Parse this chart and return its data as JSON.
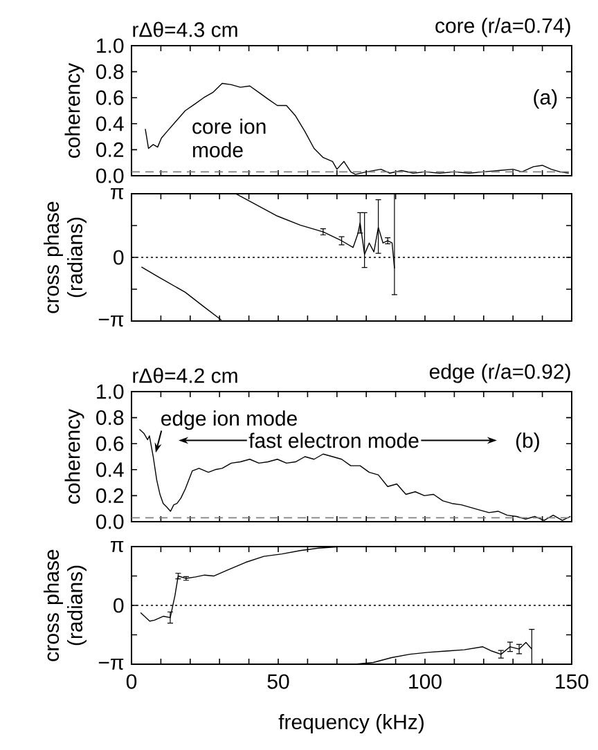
{
  "chart_data": [
    {
      "type": "line",
      "title": "rΔθ=4.3 cm",
      "subtitle": "core (r/a=0.74)",
      "ylabel": "coherency",
      "tick_labels": "y",
      "xlim": [
        0,
        150
      ],
      "xticks": [
        0,
        {
          "value": 10,
          "label": null
        },
        {
          "value": 20,
          "label": null
        },
        {
          "value": 30,
          "label": null
        },
        {
          "value": 40,
          "label": null
        },
        50,
        {
          "value": 60,
          "label": null
        },
        {
          "value": 70,
          "label": null
        },
        {
          "value": 80,
          "label": null
        },
        {
          "value": 90,
          "label": null
        },
        100,
        {
          "value": 110,
          "label": null
        },
        {
          "value": 120,
          "label": null
        },
        {
          "value": 130,
          "label": null
        },
        {
          "value": 140,
          "label": null
        },
        150
      ],
      "ylim": [
        0,
        1
      ],
      "yticks": [
        {
          "value": 0,
          "label": "0.0"
        },
        {
          "value": 0.2,
          "label": "0.2"
        },
        {
          "value": 0.4,
          "label": "0.4"
        },
        {
          "value": 0.6,
          "label": "0.6"
        },
        {
          "value": 0.8,
          "label": "0.8"
        },
        {
          "value": 1,
          "label": "1.0"
        }
      ],
      "annotations": [
        "(a)",
        "core ion mode"
      ],
      "ref_lines": [
        {
          "axis": "y",
          "value": 0.03,
          "color": "#808080",
          "line_style": "dashed"
        }
      ],
      "series": [
        {
          "color": "#000000",
          "line_style": "solid",
          "x": [
            4.7,
            5.8,
            7.4,
            8.9,
            10.2,
            12.1,
            15.2,
            18.3,
            21.5,
            24.6,
            27.7,
            30.9,
            34.0,
            37.1,
            40.3,
            43.4,
            46.5,
            49.7,
            52.8,
            55.9,
            59.1,
            62.2,
            65.3,
            68.5,
            70.0,
            72.4,
            74.7,
            76.3,
            80,
            85,
            88,
            92,
            96,
            100,
            105,
            110,
            115,
            120,
            125,
            130,
            133,
            137,
            140,
            143,
            146,
            149
          ],
          "values": [
            0.36,
            0.21,
            0.24,
            0.22,
            0.29,
            0.34,
            0.42,
            0.5,
            0.55,
            0.6,
            0.64,
            0.71,
            0.7,
            0.68,
            0.69,
            0.64,
            0.59,
            0.54,
            0.54,
            0.46,
            0.34,
            0.21,
            0.14,
            0.11,
            0.05,
            0.11,
            0.03,
            0.01,
            0.03,
            0.05,
            0.02,
            0.04,
            0.02,
            0.03,
            0.02,
            0.03,
            0.02,
            0.03,
            0.04,
            0.05,
            0.03,
            0.07,
            0.08,
            0.05,
            0.03,
            0.02
          ]
        }
      ]
    },
    {
      "type": "line",
      "ylabel": "cross phase (radians)",
      "tick_labels": "y",
      "xlim": [
        0,
        150
      ],
      "xticks": [
        0,
        {
          "value": 10,
          "label": null
        },
        {
          "value": 20,
          "label": null
        },
        {
          "value": 30,
          "label": null
        },
        {
          "value": 40,
          "label": null
        },
        50,
        {
          "value": 60,
          "label": null
        },
        {
          "value": 70,
          "label": null
        },
        {
          "value": 80,
          "label": null
        },
        {
          "value": 90,
          "label": null
        },
        100,
        {
          "value": 110,
          "label": null
        },
        {
          "value": 120,
          "label": null
        },
        {
          "value": 130,
          "label": null
        },
        {
          "value": 140,
          "label": null
        },
        150
      ],
      "ylim": [
        -3.1416,
        3.1416
      ],
      "yticks": [
        {
          "value": -3.1416,
          "label": "−π"
        },
        {
          "value": -1.5708,
          "label": null
        },
        0,
        {
          "value": 1.5708,
          "label": null
        },
        {
          "value": 3.1416,
          "label": "π"
        }
      ],
      "ref_lines": [
        {
          "axis": "y",
          "value": 0,
          "color": "#000000",
          "line_style": "dotted"
        }
      ],
      "series": [
        {
          "color": "#000000",
          "line_style": "solid",
          "x": [
            3.4,
            8.9,
            18.3,
            24.6,
            30.6,
            33,
            35.6,
            49.7,
            57.5,
            65.3,
            71.6,
            75.5,
            77.1,
            77.9,
            79.4,
            81.0,
            82.6,
            84.1,
            85.7,
            87.3,
            88.8,
            89.6
          ],
          "values": [
            -0.47,
            -0.94,
            -1.72,
            -2.43,
            -3.09,
            null,
            3.14,
            2.04,
            1.59,
            1.26,
            0.82,
            0.49,
            1.15,
            1.7,
            0.15,
            0.71,
            0.27,
            1.48,
            0.71,
            0.82,
            0.71,
            -0.54
          ],
          "errors": [
            null,
            null,
            null,
            null,
            null,
            null,
            null,
            null,
            null,
            0.15,
            0.2,
            null,
            null,
            [
              1.2,
              2.21
            ],
            [
              -0.5,
              2.21
            ],
            null,
            null,
            [
              0.2,
              2.85
            ],
            null,
            0.15,
            null,
            [
              -1.84,
              3.14
            ]
          ]
        }
      ]
    },
    {
      "type": "line",
      "title": "rΔθ=4.2 cm",
      "subtitle": "edge (r/a=0.92)",
      "ylabel": "coherency",
      "tick_labels": "y",
      "xlim": [
        0,
        150
      ],
      "xticks": [
        0,
        {
          "value": 10,
          "label": null
        },
        {
          "value": 20,
          "label": null
        },
        {
          "value": 30,
          "label": null
        },
        {
          "value": 40,
          "label": null
        },
        50,
        {
          "value": 60,
          "label": null
        },
        {
          "value": 70,
          "label": null
        },
        {
          "value": 80,
          "label": null
        },
        {
          "value": 90,
          "label": null
        },
        100,
        {
          "value": 110,
          "label": null
        },
        {
          "value": 120,
          "label": null
        },
        {
          "value": 130,
          "label": null
        },
        {
          "value": 140,
          "label": null
        },
        150
      ],
      "ylim": [
        0,
        1
      ],
      "yticks": [
        {
          "value": 0,
          "label": "0.0"
        },
        {
          "value": 0.2,
          "label": "0.2"
        },
        {
          "value": 0.4,
          "label": "0.4"
        },
        {
          "value": 0.6,
          "label": "0.6"
        },
        {
          "value": 0.8,
          "label": "0.8"
        },
        {
          "value": 1,
          "label": "1.0"
        }
      ],
      "annotations": [
        "(b)",
        "edge ion mode",
        "fast electron mode"
      ],
      "ref_lines": [
        {
          "axis": "y",
          "value": 0.03,
          "color": "#808080",
          "line_style": "dashed"
        }
      ],
      "series": [
        {
          "color": "#000000",
          "line_style": "solid",
          "x": [
            2.7,
            4.2,
            5.5,
            6.1,
            7.4,
            8.6,
            9.7,
            10.8,
            12.1,
            13.3,
            14.4,
            15.5,
            16.8,
            18.3,
            20.7,
            23.0,
            26.2,
            28.5,
            30.9,
            34.0,
            37.1,
            40.3,
            43.4,
            46.5,
            49.7,
            52.8,
            55.9,
            59.1,
            62.2,
            65.3,
            68.5,
            71.6,
            74.7,
            77.9,
            81.0,
            84.1,
            87.3,
            90.4,
            93.5,
            96.7,
            99.8,
            102.9,
            106.1,
            109.2,
            112.4,
            115.5,
            118.6,
            121.8,
            124.9,
            128.0,
            131.2,
            134.3,
            137.4,
            140.6,
            143.7,
            146.8,
            149.6
          ],
          "values": [
            0.71,
            0.68,
            0.63,
            0.66,
            0.5,
            0.32,
            0.21,
            0.14,
            0.11,
            0.08,
            0.13,
            0.14,
            0.18,
            0.25,
            0.39,
            0.41,
            0.38,
            0.4,
            0.41,
            0.45,
            0.46,
            0.48,
            0.45,
            0.46,
            0.48,
            0.45,
            0.46,
            0.5,
            0.48,
            0.52,
            0.5,
            0.48,
            0.43,
            0.43,
            0.38,
            0.36,
            0.27,
            0.29,
            0.21,
            0.23,
            0.2,
            0.21,
            0.16,
            0.14,
            0.13,
            0.11,
            0.09,
            0.07,
            0.08,
            0.05,
            0.04,
            0.02,
            0.04,
            0.01,
            0.05,
            0.01,
            0.04
          ]
        }
      ]
    },
    {
      "type": "line",
      "xlabel": "frequency (kHz)",
      "ylabel": "cross phase (radians)",
      "xlim": [
        0,
        150
      ],
      "xticks": [
        0,
        {
          "value": 10,
          "label": null
        },
        {
          "value": 20,
          "label": null
        },
        {
          "value": 30,
          "label": null
        },
        {
          "value": 40,
          "label": null
        },
        50,
        {
          "value": 60,
          "label": null
        },
        {
          "value": 70,
          "label": null
        },
        {
          "value": 80,
          "label": null
        },
        {
          "value": 90,
          "label": null
        },
        100,
        {
          "value": 110,
          "label": null
        },
        {
          "value": 120,
          "label": null
        },
        {
          "value": 130,
          "label": null
        },
        {
          "value": 140,
          "label": null
        },
        150
      ],
      "ylim": [
        -3.1416,
        3.1416
      ],
      "yticks": [
        {
          "value": -3.1416,
          "label": "−π"
        },
        {
          "value": -1.5708,
          "label": null
        },
        0,
        {
          "value": 1.5708,
          "label": null
        },
        {
          "value": 3.1416,
          "label": "π"
        }
      ],
      "ref_lines": [
        {
          "axis": "y",
          "value": 0,
          "color": "#000000",
          "line_style": "dotted"
        }
      ],
      "series": [
        {
          "color": "#000000",
          "line_style": "solid",
          "x": [
            3.1,
            6.2,
            7.8,
            10.9,
            13.2,
            14.8,
            15.9,
            18.6,
            21.8,
            24.9,
            28.0,
            32.6,
            38.9,
            45.1,
            51.3,
            57.5,
            63.7,
            71.5,
            74,
            76.1,
            82.4,
            88.6,
            94.8,
            101.0,
            107.2,
            113.4,
            119.7,
            122.8,
            125.9,
            129.0,
            132.1,
            134.4,
            136.4
          ],
          "values": [
            -0.39,
            -0.84,
            -0.79,
            -0.58,
            -0.65,
            0.52,
            1.57,
            1.44,
            1.52,
            1.62,
            1.57,
            1.88,
            2.3,
            2.62,
            2.75,
            2.93,
            3.06,
            3.14,
            null,
            -3.14,
            -3.05,
            -2.79,
            -2.61,
            -2.51,
            -2.44,
            -2.37,
            -2.21,
            -2.44,
            -2.61,
            -2.21,
            -2.33,
            -1.98,
            -2.33
          ],
          "errors": [
            null,
            null,
            null,
            null,
            [
              -0.95,
              -0.35
            ],
            null,
            0.15,
            0.1,
            null,
            null,
            null,
            null,
            null,
            null,
            null,
            null,
            null,
            null,
            null,
            null,
            null,
            null,
            null,
            null,
            null,
            null,
            null,
            null,
            0.2,
            0.25,
            0.25,
            null,
            [
              -3.14,
              -1.28
            ]
          ]
        }
      ]
    }
  ]
}
